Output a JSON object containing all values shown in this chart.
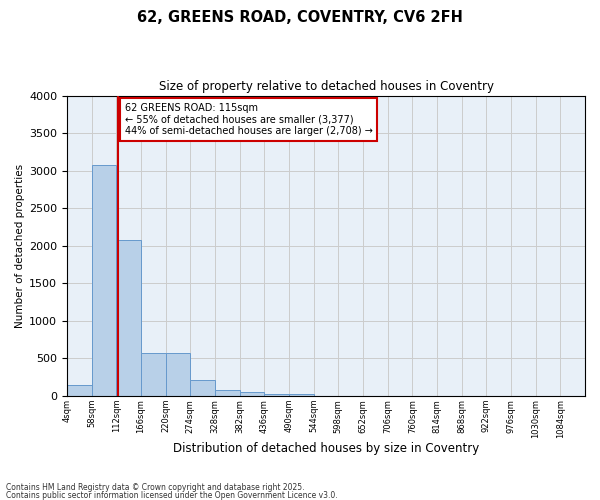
{
  "title": "62, GREENS ROAD, COVENTRY, CV6 2FH",
  "subtitle": "Size of property relative to detached houses in Coventry",
  "xlabel": "Distribution of detached houses by size in Coventry",
  "ylabel": "Number of detached properties",
  "footnote1": "Contains HM Land Registry data © Crown copyright and database right 2025.",
  "footnote2": "Contains public sector information licensed under the Open Government Licence v3.0.",
  "annotation_title": "62 GREENS ROAD: 115sqm",
  "annotation_line1": "← 55% of detached houses are smaller (3,377)",
  "annotation_line2": "44% of semi-detached houses are larger (2,708) →",
  "property_size": 115,
  "bar_left_edges": [
    4,
    58,
    112,
    166,
    220,
    274,
    328,
    382,
    436,
    490,
    544,
    598,
    652,
    706,
    760,
    814,
    868,
    922,
    976,
    1030
  ],
  "bar_heights": [
    150,
    3080,
    2080,
    570,
    570,
    220,
    80,
    50,
    30,
    30,
    0,
    0,
    0,
    0,
    0,
    0,
    0,
    0,
    0,
    0
  ],
  "bin_width": 54,
  "bar_color": "#b8d0e8",
  "bar_edge_color": "#6699cc",
  "vline_color": "#cc0000",
  "vline_x": 115,
  "annotation_box_color": "#cc0000",
  "grid_color": "#cccccc",
  "background_color": "#e8f0f8",
  "ylim": [
    0,
    4000
  ],
  "yticks": [
    0,
    500,
    1000,
    1500,
    2000,
    2500,
    3000,
    3500,
    4000
  ],
  "xtick_labels": [
    "4sqm",
    "58sqm",
    "112sqm",
    "166sqm",
    "220sqm",
    "274sqm",
    "328sqm",
    "382sqm",
    "436sqm",
    "490sqm",
    "544sqm",
    "598sqm",
    "652sqm",
    "706sqm",
    "760sqm",
    "814sqm",
    "868sqm",
    "922sqm",
    "976sqm",
    "1030sqm",
    "1084sqm"
  ]
}
